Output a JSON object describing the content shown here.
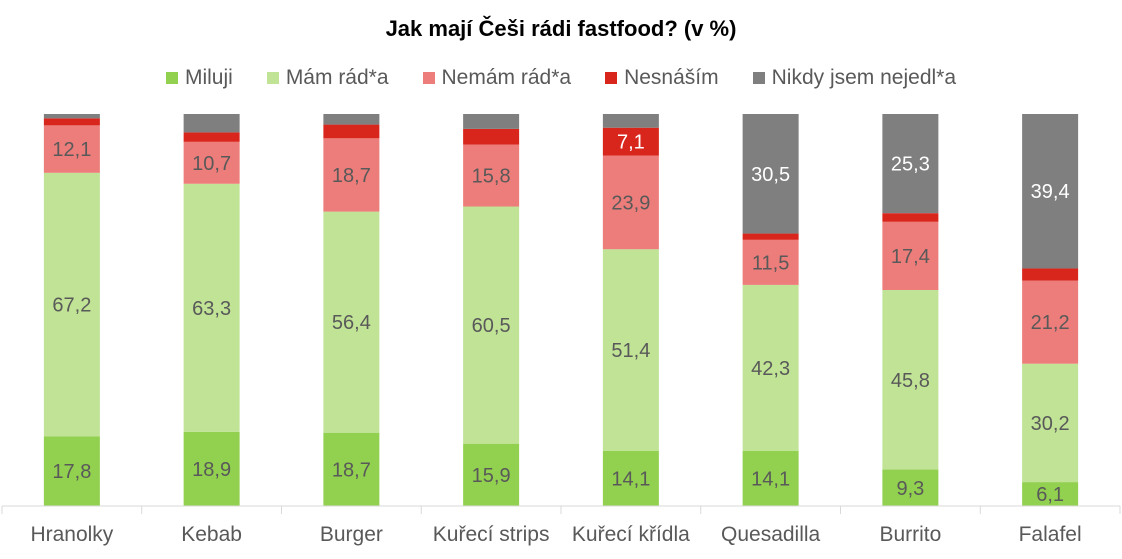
{
  "chart_data": {
    "type": "bar",
    "stacked": true,
    "title": "Jak mají Češi rádi fastfood? (v %)",
    "categories": [
      "Hranolky",
      "Kebab",
      "Burger",
      "Kuřecí strips",
      "Kuřecí křídla",
      "Quesadilla",
      "Burrito",
      "Falafel"
    ],
    "series": [
      {
        "name": "Miluji",
        "color": "#92d050",
        "values": [
          17.8,
          18.9,
          18.7,
          15.9,
          14.1,
          14.1,
          9.3,
          6.1
        ]
      },
      {
        "name": "Mám rád*a",
        "color": "#c0e396",
        "values": [
          67.2,
          63.3,
          56.4,
          60.5,
          51.4,
          42.3,
          45.8,
          30.2
        ]
      },
      {
        "name": "Nemám rád*a",
        "color": "#ed7d7a",
        "values": [
          12.1,
          10.7,
          18.7,
          15.8,
          23.9,
          11.5,
          17.4,
          21.2
        ]
      },
      {
        "name": "Nesnáším",
        "color": "#d9261c",
        "values": [
          1.8,
          2.4,
          3.5,
          4.0,
          7.1,
          1.6,
          2.2,
          3.1
        ]
      },
      {
        "name": "Nikdy jsem nejedl*a",
        "color": "#7f7f7f",
        "values": [
          1.1,
          4.7,
          2.7,
          3.8,
          3.5,
          30.5,
          25.3,
          39.4
        ]
      }
    ],
    "labels_shown_min": 5,
    "ylim": [
      0,
      100
    ],
    "legend_position": "top",
    "grid": false
  }
}
